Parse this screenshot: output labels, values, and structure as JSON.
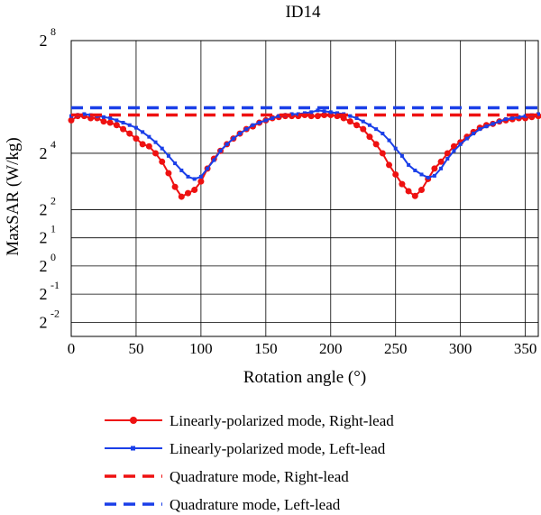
{
  "chart_data": {
    "type": "line",
    "title": "ID14",
    "xlabel": "Rotation angle (°)",
    "ylabel": "MaxSAR (W/kg)",
    "y_scale": "log2",
    "xlim": [
      0,
      360
    ],
    "ylim_log2": [
      -2.5,
      8
    ],
    "x_ticks": [
      0,
      50,
      100,
      150,
      200,
      250,
      300,
      350
    ],
    "y_ticks": [
      {
        "exp": 8,
        "base": "2",
        "sup": "8"
      },
      {
        "exp": 4,
        "base": "2",
        "sup": "4"
      },
      {
        "exp": 2,
        "base": "2",
        "sup": "2"
      },
      {
        "exp": 1,
        "base": "2",
        "sup": "1"
      },
      {
        "exp": 0,
        "base": "2",
        "sup": "0"
      },
      {
        "exp": -1,
        "base": "2",
        "sup": "-1"
      },
      {
        "exp": -2,
        "base": "2",
        "sup": "-2"
      }
    ],
    "grid": true,
    "legend_position": "bottom",
    "series": [
      {
        "name": "Linearly-polarized mode, Right-lead",
        "color": "#ee1111",
        "style": "solid",
        "marker": "circle",
        "x": [
          0,
          5,
          10,
          15,
          20,
          25,
          30,
          35,
          40,
          45,
          50,
          55,
          60,
          65,
          70,
          75,
          80,
          85,
          90,
          95,
          100,
          105,
          110,
          115,
          120,
          125,
          130,
          135,
          140,
          145,
          150,
          155,
          160,
          165,
          170,
          175,
          180,
          185,
          190,
          195,
          200,
          205,
          210,
          215,
          220,
          225,
          230,
          235,
          240,
          245,
          250,
          255,
          260,
          265,
          270,
          275,
          280,
          285,
          290,
          295,
          300,
          305,
          310,
          315,
          320,
          325,
          330,
          335,
          340,
          345,
          350,
          355,
          360
        ],
        "y": [
          36,
          40,
          40,
          38,
          38,
          35,
          34,
          32,
          29,
          26,
          23,
          20,
          19,
          16,
          13,
          9.8,
          7,
          5.5,
          6,
          6.5,
          8,
          11,
          14,
          17,
          20,
          23,
          26,
          29,
          31,
          34,
          36,
          38,
          39,
          40,
          40,
          40,
          41,
          40,
          40,
          41,
          41,
          40,
          38,
          35,
          32,
          29,
          24,
          20,
          16,
          12,
          9.5,
          7.5,
          6.3,
          5.6,
          6.5,
          8.5,
          11,
          13,
          16,
          19,
          21,
          24,
          27,
          30,
          32,
          33,
          35,
          36,
          37,
          38,
          38,
          39,
          40
        ]
      },
      {
        "name": "Linearly-polarized mode, Left-lead",
        "color": "#1a3fe8",
        "style": "solid",
        "marker": "square",
        "x": [
          0,
          5,
          10,
          15,
          20,
          25,
          30,
          35,
          40,
          45,
          50,
          55,
          60,
          65,
          70,
          75,
          80,
          85,
          90,
          95,
          100,
          105,
          110,
          115,
          120,
          125,
          130,
          135,
          140,
          145,
          150,
          155,
          160,
          165,
          170,
          175,
          180,
          185,
          190,
          195,
          200,
          205,
          210,
          215,
          220,
          225,
          230,
          235,
          240,
          245,
          250,
          255,
          260,
          265,
          270,
          275,
          280,
          285,
          290,
          295,
          300,
          305,
          310,
          315,
          320,
          325,
          330,
          335,
          340,
          345,
          350,
          355,
          360
        ],
        "y": [
          40,
          41,
          42,
          41,
          40,
          39,
          38,
          36,
          34,
          32,
          30,
          27,
          24,
          21,
          18,
          15,
          12.5,
          10.5,
          9,
          8.5,
          9,
          11,
          13.5,
          17,
          20,
          23,
          26,
          29,
          32,
          34,
          36,
          38,
          40,
          41,
          42,
          42,
          43,
          44,
          46,
          45,
          44,
          43,
          42,
          40,
          38,
          35,
          32,
          29,
          26,
          22,
          18,
          15,
          12,
          10.5,
          9.5,
          8.8,
          9.2,
          11,
          14,
          17,
          20,
          23,
          26,
          29,
          31,
          33,
          35,
          37,
          38,
          39,
          40,
          41,
          42
        ]
      },
      {
        "name": "Quadrature mode, Right-lead",
        "color": "#ee1111",
        "style": "dashed",
        "marker": "none",
        "x": [
          0,
          360
        ],
        "y": [
          41,
          41
        ]
      },
      {
        "name": "Quadrature mode, Left-lead",
        "color": "#1a3fe8",
        "style": "dashed",
        "marker": "none",
        "x": [
          0,
          360
        ],
        "y": [
          49,
          49
        ]
      }
    ]
  }
}
